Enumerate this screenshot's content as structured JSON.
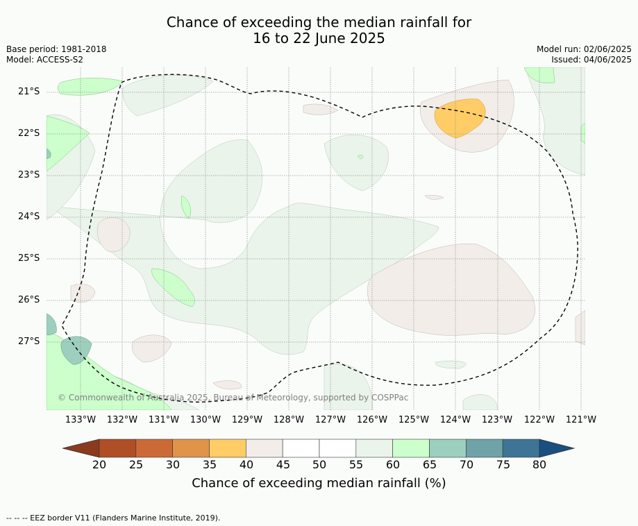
{
  "title_line1": "Chance of exceeding the median rainfall for",
  "title_line2": "16 to 22 June 2025",
  "base_period": "Base period: 1981-2018",
  "model": "Model: ACCESS-S2",
  "model_run": "Model run: 02/06/2025",
  "issued": "Issued: 04/06/2025",
  "copyright": "© Commonwealth of Australia 2025, Bureau of Meteorology, supported by COSPPac",
  "lat_labels": [
    "21°S",
    "22°S",
    "23°S",
    "24°S",
    "25°S",
    "26°S",
    "27°S"
  ],
  "lon_labels": [
    "133°W",
    "132°W",
    "131°W",
    "130°W",
    "129°W",
    "128°W",
    "127°W",
    "126°W",
    "125°W",
    "124°W",
    "123°W",
    "122°W",
    "121°W"
  ],
  "colorbar": {
    "ticks": [
      "20",
      "25",
      "30",
      "35",
      "40",
      "45",
      "50",
      "55",
      "60",
      "65",
      "70",
      "75",
      "80"
    ],
    "label": "Chance of exceeding median rainfall (%)",
    "colors": [
      "#b04e26",
      "#cc6a37",
      "#e0944a",
      "#ffcc66",
      "#f2ede8",
      "#ffffff",
      "#ffffff",
      "#eaf4ea",
      "#ccffcc",
      "#9dcfbf",
      "#6fa3a8",
      "#3e7596"
    ],
    "under_color": "#8c3a1e",
    "over_color": "#1a4f80"
  },
  "footer": "--  --  -- EEZ border V11 (Flanders Marine Institute, 2019)."
}
